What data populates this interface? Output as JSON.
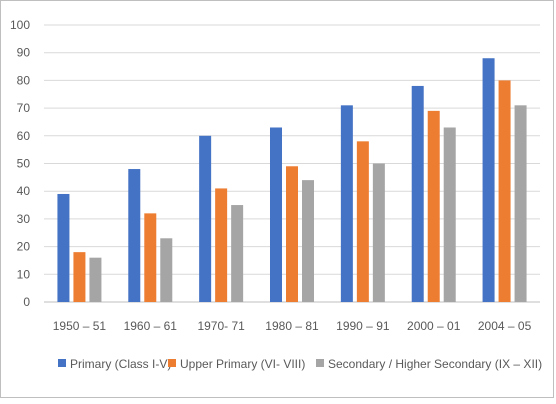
{
  "chart_data": {
    "type": "bar",
    "categories": [
      "1950 – 51",
      "1960 – 61",
      "1970- 71",
      "1980 – 81",
      "1990 – 91",
      "2000 – 01",
      "2004 – 05"
    ],
    "series": [
      {
        "name": "Primary (Class I-V)",
        "color": "#4472c4",
        "values": [
          39,
          48,
          60,
          63,
          71,
          78,
          88
        ]
      },
      {
        "name": "Upper Primary (VI- VIII)",
        "color": "#ed7d31",
        "values": [
          18,
          32,
          41,
          49,
          58,
          69,
          80
        ]
      },
      {
        "name": "Secondary / Higher Secondary (IX – XII)",
        "color": "#a5a5a5",
        "values": [
          16,
          23,
          35,
          44,
          50,
          63,
          71
        ]
      }
    ],
    "ylim": [
      0,
      100
    ],
    "yticks": [
      0,
      10,
      20,
      30,
      40,
      50,
      60,
      70,
      80,
      90,
      100
    ],
    "grid": true,
    "legend": "bottom",
    "title": "",
    "xlabel": "",
    "ylabel": ""
  }
}
